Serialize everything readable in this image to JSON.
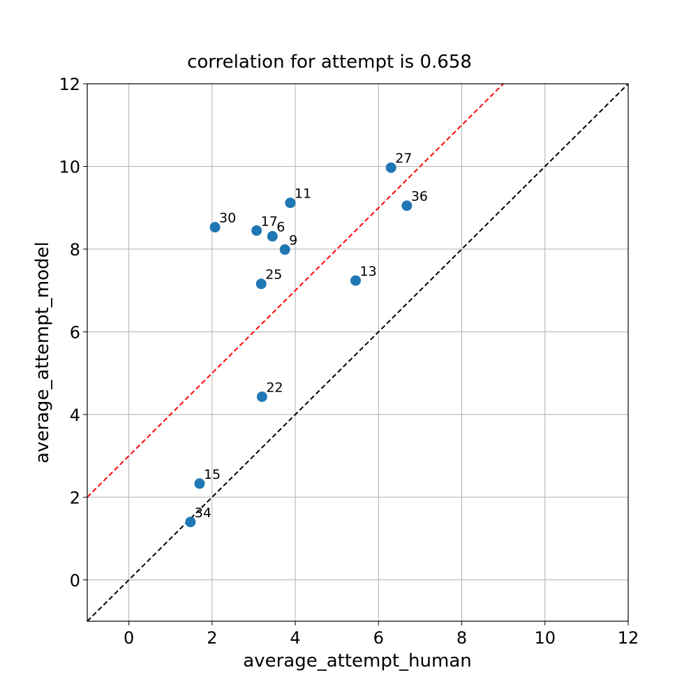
{
  "chart_data": {
    "type": "scatter",
    "title": "correlation for attempt is 0.658",
    "xlabel": "average_attempt_human",
    "ylabel": "average_attempt_model",
    "xlim": [
      -1,
      12
    ],
    "ylim": [
      -1,
      12
    ],
    "xticks": [
      "0",
      "2",
      "4",
      "6",
      "8",
      "10",
      "12"
    ],
    "yticks": [
      "0",
      "2",
      "4",
      "6",
      "8",
      "10",
      "12"
    ],
    "grid": true,
    "marker_color": "#1f77b4",
    "points": [
      {
        "label": "27",
        "x": 6.3,
        "y": 9.97
      },
      {
        "label": "11",
        "x": 3.88,
        "y": 9.12
      },
      {
        "label": "36",
        "x": 6.68,
        "y": 9.05
      },
      {
        "label": "30",
        "x": 2.07,
        "y": 8.53
      },
      {
        "label": "17",
        "x": 3.07,
        "y": 8.45
      },
      {
        "label": "6",
        "x": 3.45,
        "y": 8.31
      },
      {
        "label": "9",
        "x": 3.75,
        "y": 7.99
      },
      {
        "label": "25",
        "x": 3.18,
        "y": 7.16
      },
      {
        "label": "13",
        "x": 5.45,
        "y": 7.24
      },
      {
        "label": "22",
        "x": 3.2,
        "y": 4.43
      },
      {
        "label": "15",
        "x": 1.7,
        "y": 2.33
      },
      {
        "label": "34",
        "x": 1.48,
        "y": 1.4
      }
    ],
    "lines": [
      {
        "style": "dashed",
        "color": "#ff0000",
        "slope": 1,
        "intercept": 3
      },
      {
        "style": "dashed",
        "color": "#000000",
        "slope": 1,
        "intercept": 0
      }
    ]
  }
}
